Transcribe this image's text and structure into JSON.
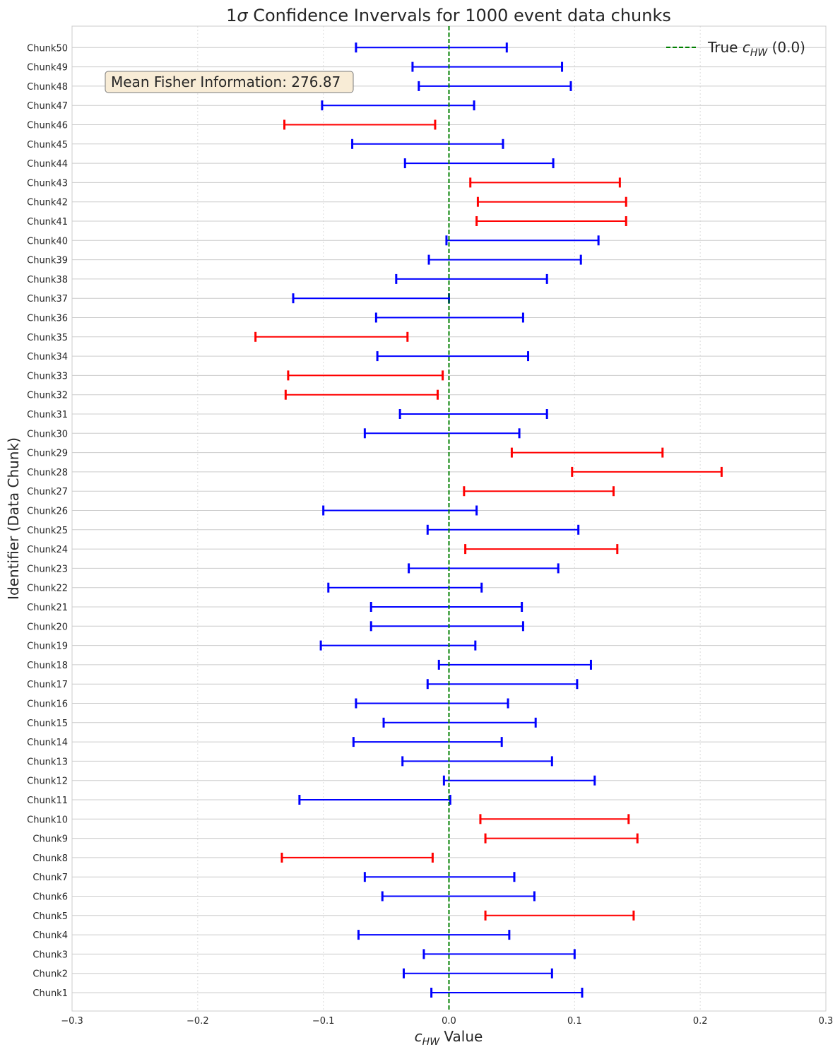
{
  "chart_data": {
    "type": "errorbar",
    "orientation": "horizontal",
    "title_parts": [
      "1",
      "σ",
      " Confidence Invervals for 1000 event data chunks"
    ],
    "xlabel_parts": [
      "c",
      "HW",
      " Value"
    ],
    "ylabel": "Identifier (Data Chunk)",
    "xlim": [
      -0.3,
      0.3
    ],
    "xticks": [
      -0.3,
      -0.2,
      -0.1,
      0.0,
      0.1,
      0.2,
      0.3
    ],
    "xtick_labels": [
      "−0.3",
      "−0.2",
      "−0.1",
      "0.0",
      "0.1",
      "0.2",
      "0.3"
    ],
    "grid": true,
    "true_value": 0.0,
    "legend": {
      "position": "top-right",
      "label_parts": [
        "True ",
        "c",
        "HW",
        " (0.0)"
      ],
      "color": "#008000"
    },
    "annotation": "Mean Fisher Information: 276.87",
    "colors": {
      "contains_true": "#0000ff",
      "excludes_true": "#ff0000"
    },
    "categories": [
      "Chunk1",
      "Chunk2",
      "Chunk3",
      "Chunk4",
      "Chunk5",
      "Chunk6",
      "Chunk7",
      "Chunk8",
      "Chunk9",
      "Chunk10",
      "Chunk11",
      "Chunk12",
      "Chunk13",
      "Chunk14",
      "Chunk15",
      "Chunk16",
      "Chunk17",
      "Chunk18",
      "Chunk19",
      "Chunk20",
      "Chunk21",
      "Chunk22",
      "Chunk23",
      "Chunk24",
      "Chunk25",
      "Chunk26",
      "Chunk27",
      "Chunk28",
      "Chunk29",
      "Chunk30",
      "Chunk31",
      "Chunk32",
      "Chunk33",
      "Chunk34",
      "Chunk35",
      "Chunk36",
      "Chunk37",
      "Chunk38",
      "Chunk39",
      "Chunk40",
      "Chunk41",
      "Chunk42",
      "Chunk43",
      "Chunk44",
      "Chunk45",
      "Chunk46",
      "Chunk47",
      "Chunk48",
      "Chunk49",
      "Chunk50"
    ],
    "lower": [
      -0.014,
      -0.036,
      -0.02,
      -0.072,
      0.029,
      -0.053,
      -0.067,
      -0.133,
      0.029,
      0.025,
      -0.119,
      -0.004,
      -0.037,
      -0.076,
      -0.052,
      -0.074,
      -0.017,
      -0.008,
      -0.102,
      -0.062,
      -0.062,
      -0.096,
      -0.032,
      0.013,
      -0.017,
      -0.1,
      0.012,
      0.098,
      0.05,
      -0.067,
      -0.039,
      -0.13,
      -0.128,
      -0.057,
      -0.154,
      -0.058,
      -0.124,
      -0.042,
      -0.016,
      -0.002,
      0.022,
      0.023,
      0.017,
      -0.035,
      -0.077,
      -0.131,
      -0.101,
      -0.024,
      -0.029,
      -0.074
    ],
    "upper": [
      0.106,
      0.082,
      0.1,
      0.048,
      0.147,
      0.068,
      0.052,
      -0.013,
      0.15,
      0.143,
      0.001,
      0.116,
      0.082,
      0.042,
      0.069,
      0.047,
      0.102,
      0.113,
      0.021,
      0.059,
      0.058,
      0.026,
      0.087,
      0.134,
      0.103,
      0.022,
      0.131,
      0.217,
      0.17,
      0.056,
      0.078,
      -0.009,
      -0.005,
      0.063,
      -0.033,
      0.059,
      0.0,
      0.078,
      0.105,
      0.119,
      0.141,
      0.141,
      0.136,
      0.083,
      0.043,
      -0.011,
      0.02,
      0.097,
      0.09,
      0.046
    ]
  }
}
